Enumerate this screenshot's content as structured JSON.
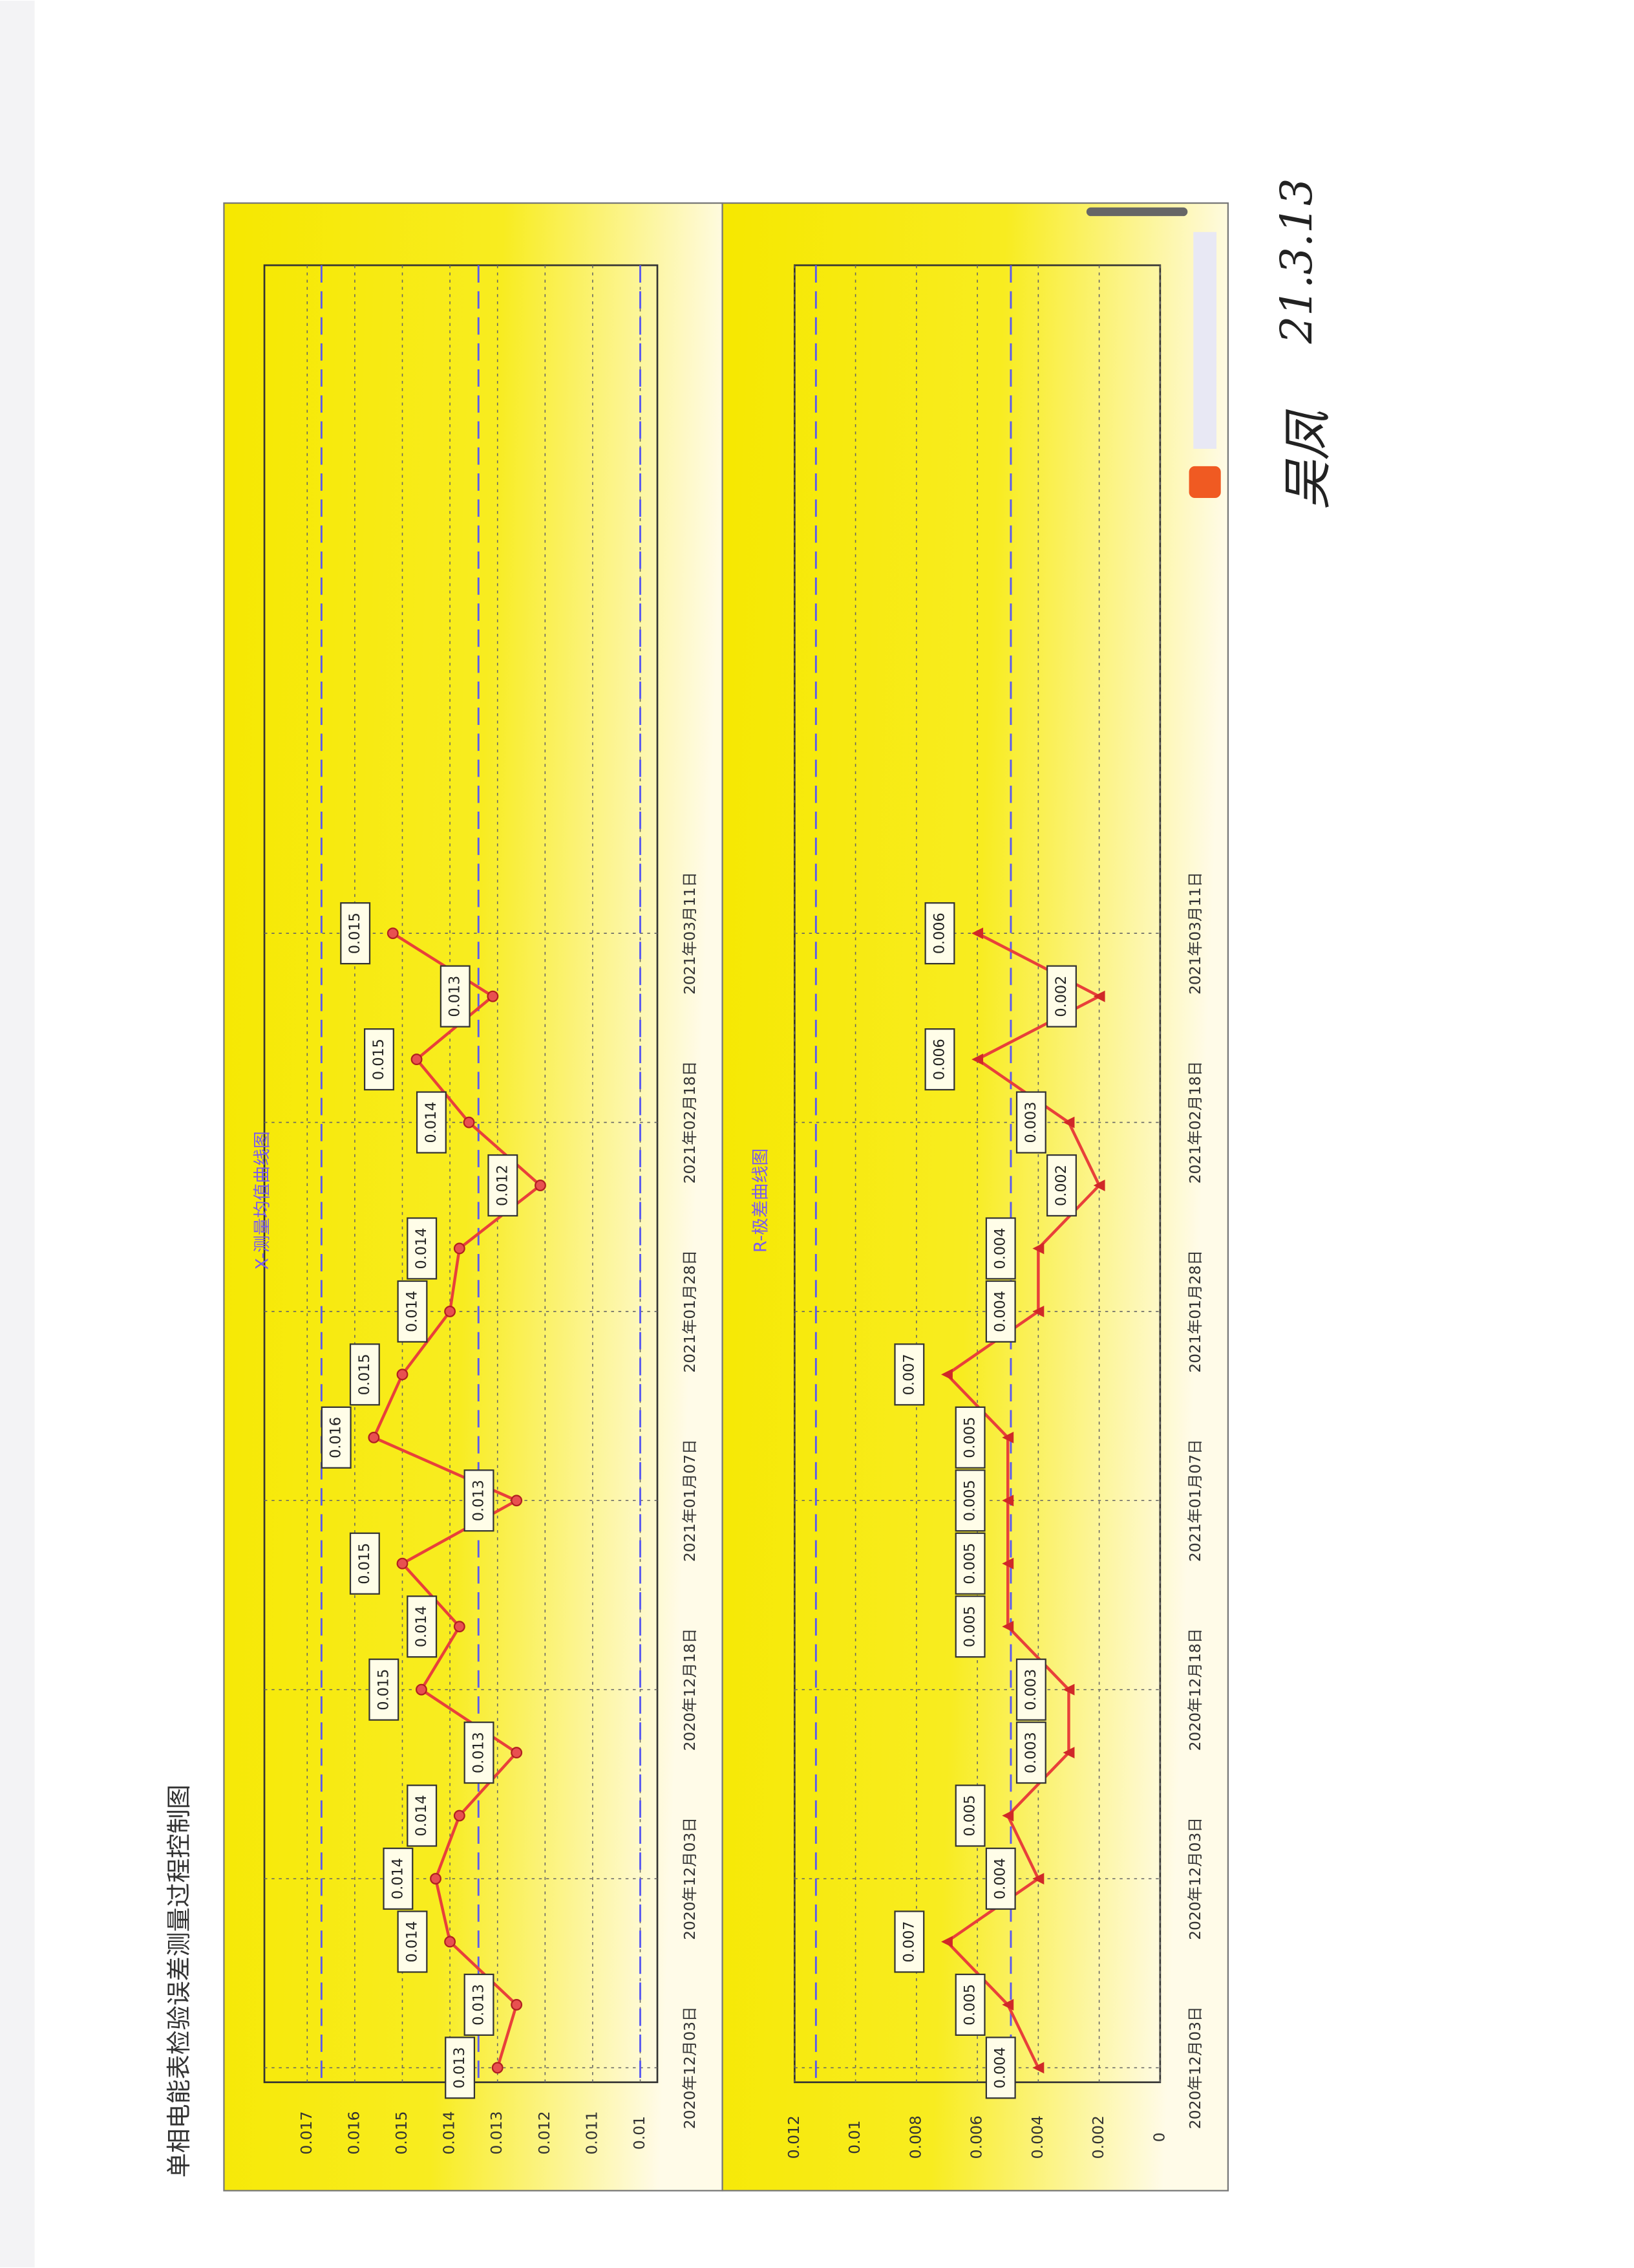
{
  "page_title": "单相电能表检验误差测量过程控制图",
  "handwriting": {
    "signature": "吴凤",
    "date": "21.3.13"
  },
  "chart_data": [
    {
      "type": "line",
      "title": "X-测量均值曲线图",
      "color": "#e8403a",
      "marker": "circle",
      "x": [
        0,
        1,
        2,
        3,
        4,
        5,
        6,
        7,
        8,
        9,
        10,
        11,
        12,
        13,
        14,
        15,
        16,
        17,
        18
      ],
      "values": [
        0.013,
        0.0126,
        0.014,
        0.0143,
        0.0138,
        0.0126,
        0.0146,
        0.0138,
        0.015,
        0.0126,
        0.0156,
        0.015,
        0.014,
        0.0138,
        0.0121,
        0.0136,
        0.0147,
        0.0131,
        0.0152
      ],
      "value_labels": [
        "0.013",
        "0.013",
        "0.014",
        "0.014",
        "0.014",
        "0.013",
        "0.015",
        "0.014",
        "0.015",
        "0.013",
        "0.016",
        "0.015",
        "0.014",
        "0.014",
        "0.012",
        "0.014",
        "0.015",
        "0.013",
        "0.015"
      ],
      "xlim": [
        -0.23,
        28.6
      ],
      "xticks": [
        {
          "value": 0,
          "label": "2020年12月03日"
        },
        {
          "value": 3,
          "label": "2020年12月03日"
        },
        {
          "value": 6,
          "label": "2020年12月18日"
        },
        {
          "value": 9,
          "label": "2021年01月07日"
        },
        {
          "value": 12,
          "label": "2021年01月28日"
        },
        {
          "value": 15,
          "label": "2021年02月18日"
        },
        {
          "value": 18,
          "label": "2021年03月11日"
        }
      ],
      "ylim": [
        0.00964,
        0.0179
      ],
      "yticks": [
        0.017,
        0.016,
        0.015,
        0.014,
        0.013,
        0.012,
        0.011,
        0.01
      ],
      "control_lines": [
        0.0167,
        0.0134,
        0.01
      ],
      "control_color": "#5a5af0",
      "grid": true
    },
    {
      "type": "line",
      "title": "R-极差曲线图",
      "color": "#e8403a",
      "marker": "triangle",
      "x": [
        0,
        1,
        2,
        3,
        4,
        5,
        6,
        7,
        8,
        9,
        10,
        11,
        12,
        13,
        14,
        15,
        16,
        17,
        18
      ],
      "values": [
        0.004,
        0.005,
        0.007,
        0.004,
        0.005,
        0.003,
        0.003,
        0.005,
        0.005,
        0.005,
        0.005,
        0.007,
        0.004,
        0.004,
        0.002,
        0.003,
        0.006,
        0.002,
        0.006
      ],
      "xlim": [
        -0.23,
        28.6
      ],
      "xticks": [
        {
          "value": 0,
          "label": "2020年12月03日"
        },
        {
          "value": 3,
          "label": "2020年12月03日"
        },
        {
          "value": 6,
          "label": "2020年12月18日"
        },
        {
          "value": 9,
          "label": "2021年01月07日"
        },
        {
          "value": 12,
          "label": "2021年01月28日"
        },
        {
          "value": 15,
          "label": "2021年02月18日"
        },
        {
          "value": 18,
          "label": "2021年03月11日"
        }
      ],
      "ylim": [
        0,
        0.012
      ],
      "yticks": [
        0.012,
        0.01,
        0.008,
        0.006,
        0.004,
        0.002,
        0
      ],
      "control_lines": [
        0.0113,
        0.0049
      ],
      "control_color": "#5a5af0",
      "grid": true
    }
  ]
}
